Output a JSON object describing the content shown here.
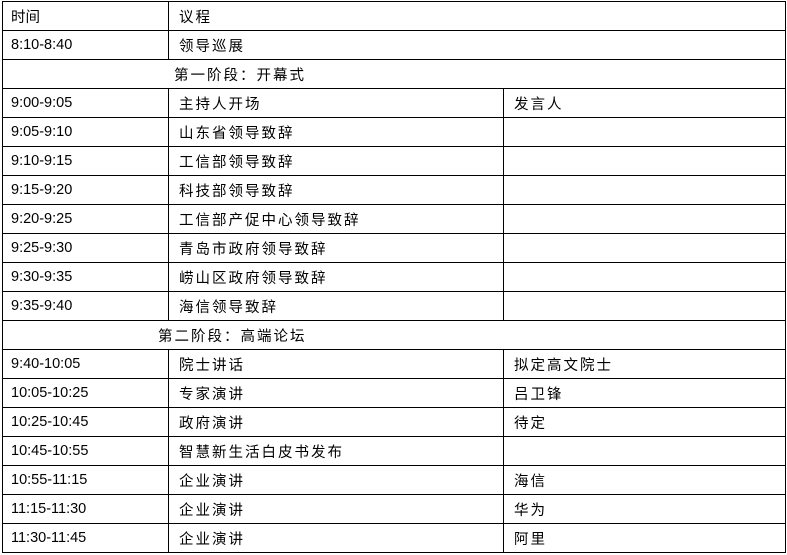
{
  "header": {
    "time": "时间",
    "agenda": "议程"
  },
  "opening_row": {
    "time": "8:10-8:40",
    "agenda": "领导巡展"
  },
  "stage1": {
    "title": "第一阶段：开幕式",
    "speaker_header": "发言人",
    "rows": [
      {
        "time": "9:00-9:05",
        "agenda": "主持人开场",
        "speaker": "发言人"
      },
      {
        "time": "9:05-9:10",
        "agenda": "山东省领导致辞",
        "speaker": ""
      },
      {
        "time": "9:10-9:15",
        "agenda": "工信部领导致辞",
        "speaker": ""
      },
      {
        "time": "9:15-9:20",
        "agenda": "科技部领导致辞",
        "speaker": ""
      },
      {
        "time": "9:20-9:25",
        "agenda": "工信部产促中心领导致辞",
        "speaker": ""
      },
      {
        "time": "9:25-9:30",
        "agenda": "青岛市政府领导致辞",
        "speaker": ""
      },
      {
        "time": "9:30-9:35",
        "agenda": "崂山区政府领导致辞",
        "speaker": ""
      },
      {
        "time": "9:35-9:40",
        "agenda": "海信领导致辞",
        "speaker": ""
      }
    ]
  },
  "stage2": {
    "title": "第二阶段：高端论坛",
    "rows": [
      {
        "time": "9:40-10:05",
        "agenda": "院士讲话",
        "speaker": "拟定高文院士"
      },
      {
        "time": "10:05-10:25",
        "agenda": "专家演讲",
        "speaker": "吕卫锋"
      },
      {
        "time": "10:25-10:45",
        "agenda": "政府演讲",
        "speaker": "待定"
      },
      {
        "time": "10:45-10:55",
        "agenda": "智慧新生活白皮书发布",
        "speaker": ""
      },
      {
        "time": "10:55-11:15",
        "agenda": "企业演讲",
        "speaker": "海信"
      },
      {
        "time": "11:15-11:30",
        "agenda": "企业演讲",
        "speaker": "华为"
      },
      {
        "time": "11:30-11:45",
        "agenda": "企业演讲",
        "speaker": "阿里"
      }
    ]
  }
}
